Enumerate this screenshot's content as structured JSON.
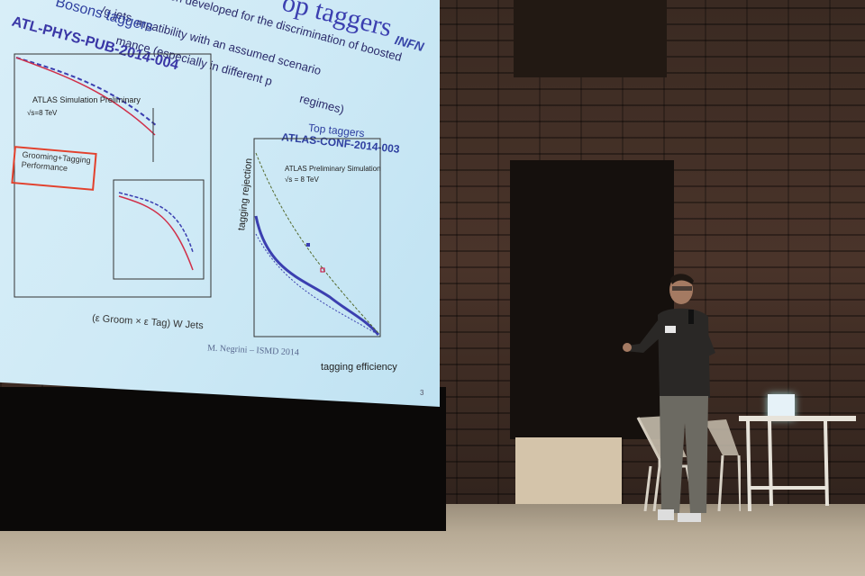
{
  "slide": {
    "title": "op taggers",
    "intro_text": "been developed for the discrimination of boosted",
    "intro_text2": "mpatibility with an assumed scenario",
    "intro_text3": "mance (especially in different p",
    "intro_text4": "regimes)",
    "qg_fragment": "/g jets",
    "logo": "INFN",
    "left_heading": "Bosons taggers",
    "left_ref": "ATL-PHYS-PUB-2014-004",
    "right_heading": "Top taggers",
    "right_ref": "ATLAS-CONF-2014-003",
    "redbox_text": "Grooming+Tagging Performance",
    "y_axis_label": "tagging rejection",
    "x_axis_label": "tagging efficiency",
    "left_x_label": "(ε Groom × ε Tag) W Jets",
    "footer": "M. Negrini – ISMD 2014",
    "page_number": "3"
  },
  "colors": {
    "projection": "#cfeaf6",
    "title_blue": "#3b3fb0",
    "redbox": "#e2412d"
  }
}
